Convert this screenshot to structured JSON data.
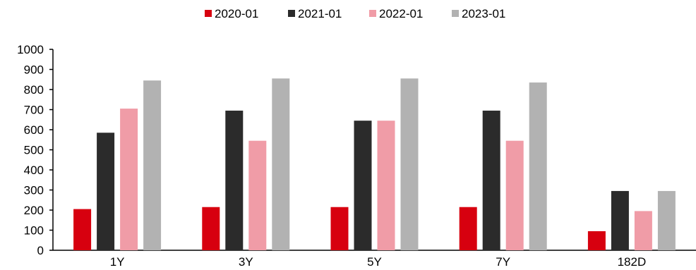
{
  "chart_data": {
    "type": "bar",
    "categories": [
      "1Y",
      "3Y",
      "5Y",
      "7Y",
      "182D"
    ],
    "series": [
      {
        "name": "2020-01",
        "color": "#d7000f",
        "values": [
          205,
          215,
          215,
          215,
          95
        ]
      },
      {
        "name": "2021-01",
        "color": "#2b2b2b",
        "values": [
          585,
          695,
          645,
          695,
          295
        ]
      },
      {
        "name": "2022-01",
        "color": "#f09ca7",
        "values": [
          705,
          545,
          645,
          545,
          195
        ]
      },
      {
        "name": "2023-01",
        "color": "#b2b2b2",
        "values": [
          845,
          855,
          855,
          835,
          295
        ]
      }
    ],
    "y_ticks": [
      "0",
      "100",
      "200",
      "300",
      "400",
      "500",
      "600",
      "700",
      "800",
      "900",
      "1000"
    ],
    "ylim": [
      0,
      1000
    ],
    "title": "",
    "xlabel": "",
    "ylabel": "",
    "grid": false,
    "legend_position": "top-center"
  }
}
